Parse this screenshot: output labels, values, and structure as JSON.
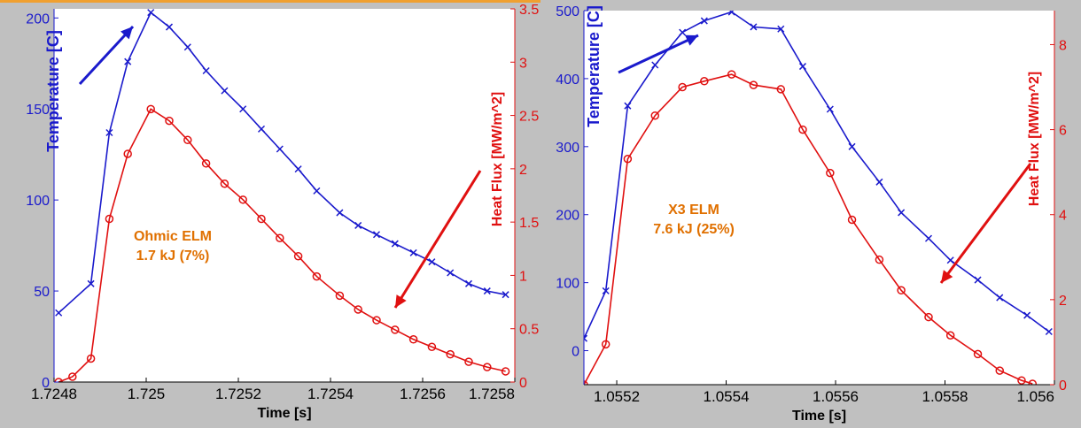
{
  "chart_data": [
    {
      "type": "line",
      "xlabel": "Time [s]",
      "ylabel_left": "Temperature [C]",
      "ylabel_right": "Heat Flux [MW/m^2]",
      "annotation": [
        "Ohmic ELM",
        "1.7 kJ (7%)"
      ],
      "xlim": [
        1.7248,
        1.7258
      ],
      "ylim_left": [
        0,
        205
      ],
      "ylim_right": [
        0,
        3.5
      ],
      "x_ticks": [
        1.7248,
        1.725,
        1.7252,
        1.7254,
        1.7256,
        1.7258
      ],
      "x_tick_labels": [
        "1.7248",
        "1.725",
        "1.7252",
        "1.7254",
        "1.7256",
        "1.7258"
      ],
      "y_left_ticks": [
        0,
        50,
        100,
        150,
        200
      ],
      "y_left_tick_labels": [
        "0",
        "50",
        "100",
        "150",
        "200"
      ],
      "y_right_ticks": [
        0,
        0.5,
        1,
        1.5,
        2,
        2.5,
        3,
        3.5
      ],
      "y_right_tick_labels": [
        "0",
        "0.5",
        "1",
        "1.5",
        "2",
        "2.5",
        "3",
        "3.5"
      ],
      "grid": false,
      "colors": {
        "temperature": "#1a1acc",
        "heatflux": "#e01010",
        "annotation": "#e07000"
      },
      "series": [
        {
          "axis": "left",
          "color": "#1a1acc",
          "marker": "x",
          "x": [
            1.72481,
            1.72488,
            1.72492,
            1.72496,
            1.72501,
            1.72505,
            1.72509,
            1.72513,
            1.72517,
            1.72521,
            1.72525,
            1.72529,
            1.72533,
            1.72537,
            1.72542,
            1.72546,
            1.7255,
            1.72554,
            1.72558,
            1.72562,
            1.72566,
            1.7257,
            1.72574,
            1.72578
          ],
          "y": [
            38,
            54,
            137,
            176,
            203,
            195,
            184,
            171,
            160,
            150,
            139,
            128,
            117,
            105,
            93,
            86,
            81,
            76,
            71,
            66,
            60,
            54,
            50,
            48
          ]
        },
        {
          "axis": "right",
          "color": "#e01010",
          "marker": "o",
          "x": [
            1.72481,
            1.72484,
            1.72488,
            1.72492,
            1.72496,
            1.72501,
            1.72505,
            1.72509,
            1.72513,
            1.72517,
            1.72521,
            1.72525,
            1.72529,
            1.72533,
            1.72537,
            1.72542,
            1.72546,
            1.7255,
            1.72554,
            1.72558,
            1.72562,
            1.72566,
            1.7257,
            1.72574,
            1.72578
          ],
          "y": [
            0.0,
            0.05,
            0.22,
            1.53,
            2.14,
            2.56,
            2.45,
            2.27,
            2.05,
            1.86,
            1.71,
            1.53,
            1.35,
            1.18,
            0.99,
            0.81,
            0.68,
            0.58,
            0.49,
            0.4,
            0.33,
            0.26,
            0.19,
            0.14,
            0.1
          ]
        }
      ]
    },
    {
      "type": "line",
      "xlabel": "Time [s]",
      "ylabel_left": "Temperature [C]",
      "ylabel_right": "Heat Flux [MW/m^2]",
      "annotation": [
        "X3 ELM",
        "7.6 kJ (25%)"
      ],
      "xlim": [
        1.05514,
        1.056
      ],
      "ylim_left": [
        -50,
        500
      ],
      "ylim_right": [
        0,
        8.8
      ],
      "x_ticks": [
        1.0552,
        1.0554,
        1.0556,
        1.0558,
        1.056
      ],
      "x_tick_labels": [
        "1.0552",
        "1.0554",
        "1.0556",
        "1.0558",
        "1.056"
      ],
      "y_left_ticks": [
        0,
        100,
        200,
        300,
        400,
        500
      ],
      "y_left_tick_labels": [
        "0",
        "100",
        "200",
        "300",
        "400",
        "500"
      ],
      "y_right_ticks": [
        0,
        2,
        4,
        6,
        8
      ],
      "y_right_tick_labels": [
        "0",
        "2",
        "4",
        "6",
        "8"
      ],
      "grid": false,
      "colors": {
        "temperature": "#1a1acc",
        "heatflux": "#e01010",
        "annotation": "#e07000"
      },
      "series": [
        {
          "axis": "left",
          "color": "#1a1acc",
          "marker": "x",
          "x": [
            1.05514,
            1.05518,
            1.05522,
            1.05527,
            1.05532,
            1.05536,
            1.05541,
            1.05545,
            1.0555,
            1.05554,
            1.05559,
            1.05563,
            1.05568,
            1.05572,
            1.05577,
            1.05581,
            1.05586,
            1.0559,
            1.05595,
            1.05599
          ],
          "y": [
            18,
            88,
            360,
            420,
            468,
            485,
            498,
            476,
            473,
            418,
            355,
            300,
            248,
            203,
            165,
            133,
            104,
            78,
            52,
            28
          ]
        },
        {
          "axis": "right",
          "color": "#e01010",
          "marker": "o",
          "x": [
            1.05514,
            1.05518,
            1.05522,
            1.05527,
            1.05532,
            1.05536,
            1.05541,
            1.05545,
            1.0555,
            1.05554,
            1.05559,
            1.05563,
            1.05568,
            1.05572,
            1.05577,
            1.05581,
            1.05586,
            1.0559,
            1.05594,
            1.05596
          ],
          "y": [
            0.0,
            0.95,
            5.31,
            6.33,
            7.0,
            7.14,
            7.3,
            7.05,
            6.95,
            6.0,
            4.98,
            3.88,
            2.94,
            2.22,
            1.59,
            1.16,
            0.72,
            0.33,
            0.1,
            0.02
          ]
        }
      ]
    }
  ]
}
